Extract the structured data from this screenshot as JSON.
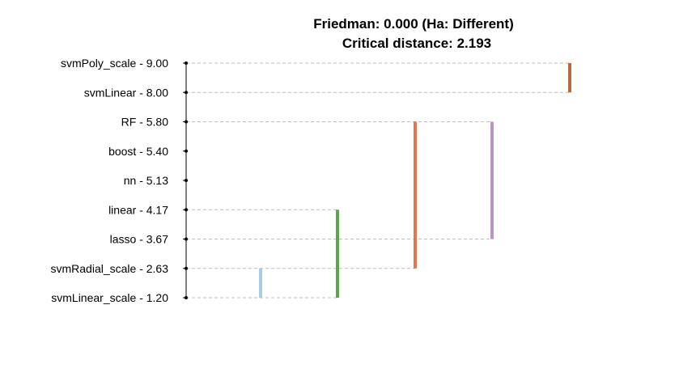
{
  "chart_data": {
    "type": "critical-difference",
    "title": "Friedman: 0.000 (Ha: Different)",
    "subtitle": "Critical distance: 2.193",
    "rows": [
      {
        "label": "svmPoly_scale - 9.00",
        "name": "svmPoly_scale",
        "rank": 9.0
      },
      {
        "label": "svmLinear - 8.00",
        "name": "svmLinear",
        "rank": 8.0
      },
      {
        "label": "RF - 5.80",
        "name": "RF",
        "rank": 5.8
      },
      {
        "label": "boost - 5.40",
        "name": "boost",
        "rank": 5.4
      },
      {
        "label": "nn - 5.13",
        "name": "nn",
        "rank": 5.13
      },
      {
        "label": "linear - 4.17",
        "name": "linear",
        "rank": 4.17
      },
      {
        "label": "lasso - 3.67",
        "name": "lasso",
        "rank": 3.67
      },
      {
        "label": "svmRadial_scale - 2.63",
        "name": "svmRadial_scale",
        "rank": 2.63
      },
      {
        "label": "svmLinear_scale - 1.20",
        "name": "svmLinear_scale",
        "rank": 1.2
      }
    ],
    "groups": [
      {
        "from": "svmLinear_scale",
        "to": "svmRadial_scale",
        "color": "#a6cee3"
      },
      {
        "from": "svmLinear_scale",
        "to": "linear",
        "color": "#5aa64a"
      },
      {
        "from": "svmRadial_scale",
        "to": "RF",
        "color": "#e8734f"
      },
      {
        "from": "lasso",
        "to": "RF",
        "color": "#b895c8"
      },
      {
        "from": "svmLinear",
        "to": "svmPoly_scale",
        "color": "#b5693c"
      }
    ],
    "grid_color": "#bebebe",
    "grid": "dashed"
  }
}
